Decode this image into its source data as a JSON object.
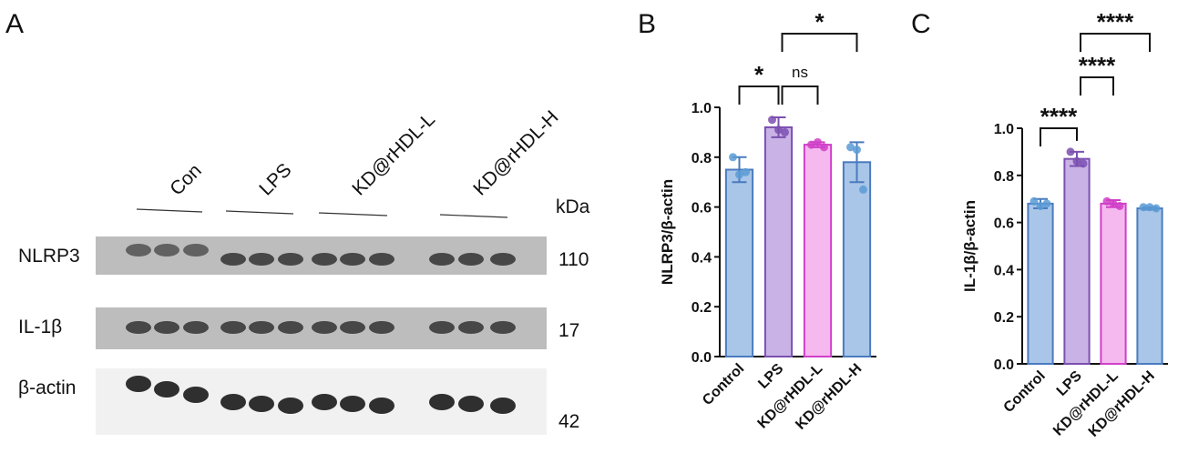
{
  "panel_labels": [
    "A",
    "B",
    "C"
  ],
  "blot": {
    "groups": [
      "Con",
      "LPS",
      "KD@rHDL-L",
      "KD@rHDL-H"
    ],
    "unit": "kDa",
    "rows": [
      {
        "label": "NLRP3",
        "kda": "110"
      },
      {
        "label": "IL-1β",
        "kda": "17"
      },
      {
        "label": "β-actin",
        "kda": "42"
      }
    ]
  },
  "chart_data": [
    {
      "type": "bar",
      "y_label": "NLRP3/β-actin",
      "categories": [
        "Control",
        "LPS",
        "KD@rHDL-L",
        "KD@rHDL-H"
      ],
      "values": [
        0.75,
        0.92,
        0.85,
        0.78
      ],
      "errors": [
        0.05,
        0.04,
        0.01,
        0.08
      ],
      "points": [
        [
          0.8,
          0.73,
          0.74
        ],
        [
          0.95,
          0.91,
          0.9
        ],
        [
          0.85,
          0.86,
          0.84
        ],
        [
          0.84,
          0.83,
          0.67
        ]
      ],
      "fill_colors": [
        "#a9c6e8",
        "#c9b3e6",
        "#f5b8ef",
        "#a9c6e8"
      ],
      "edge_colors": [
        "#4a7bbf",
        "#7b4fb0",
        "#d040c8",
        "#4a7bbf"
      ],
      "ylim": [
        0,
        1
      ],
      "yticks": [
        {
          "value": 0,
          "label": "0.0"
        },
        0.2,
        0.4,
        0.6,
        0.8,
        {
          "value": 1,
          "label": "1.0"
        }
      ],
      "comparisons": [
        {
          "pair": [
            0,
            1
          ],
          "label": "*"
        },
        {
          "pair": [
            1,
            2
          ],
          "label": "ns"
        },
        {
          "pair": [
            1,
            3
          ],
          "label": "*"
        }
      ]
    },
    {
      "type": "bar",
      "y_label": "IL-1β/β-actin",
      "categories": [
        "Control",
        "LPS",
        "KD@rHDL-L",
        "KD@rHDL-H"
      ],
      "values": [
        0.68,
        0.87,
        0.68,
        0.66
      ],
      "errors": [
        0.02,
        0.03,
        0.015,
        0.005
      ],
      "points": [
        [
          0.69,
          0.67,
          0.68
        ],
        [
          0.9,
          0.86,
          0.85
        ],
        [
          0.69,
          0.68,
          0.67
        ],
        [
          0.665,
          0.665,
          0.66
        ]
      ],
      "fill_colors": [
        "#a9c6e8",
        "#c9b3e6",
        "#f5b8ef",
        "#a9c6e8"
      ],
      "edge_colors": [
        "#4a7bbf",
        "#7b4fb0",
        "#d040c8",
        "#4a7bbf"
      ],
      "ylim": [
        0,
        1
      ],
      "yticks": [
        {
          "value": 0,
          "label": "0.0"
        },
        0.2,
        0.4,
        0.6,
        0.8,
        {
          "value": 1,
          "label": "1.0"
        }
      ],
      "comparisons": [
        {
          "pair": [
            0,
            1
          ],
          "label": "****"
        },
        {
          "pair": [
            1,
            2
          ],
          "label": "****"
        },
        {
          "pair": [
            1,
            3
          ],
          "label": "****"
        }
      ]
    }
  ]
}
